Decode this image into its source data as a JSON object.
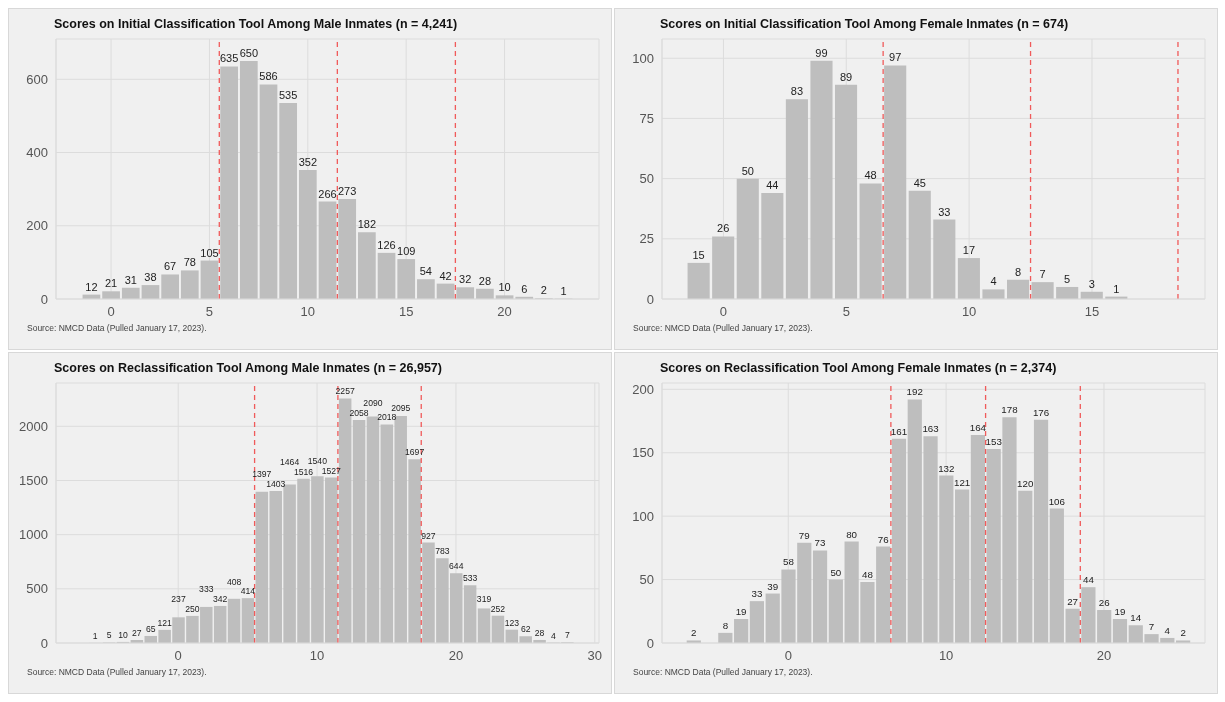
{
  "chart_data": [
    {
      "type": "histogram",
      "title": "Scores on Initial Classification Tool Among Male Inmates (n = 4,241)",
      "bins": [
        -1.5,
        -0.5,
        0.5,
        1.5,
        2.5,
        3.5,
        4.5,
        5.5,
        6.5,
        7.5,
        8.5,
        9.5,
        10.5,
        11.5,
        12.5,
        13.5,
        14.5,
        15.5,
        16.5,
        17.5,
        18.5,
        19.5,
        20.5,
        21.5,
        22.5,
        23.5
      ],
      "values": [
        12,
        21,
        31,
        38,
        67,
        78,
        105,
        635,
        650,
        586,
        535,
        352,
        266,
        273,
        182,
        126,
        109,
        54,
        42,
        32,
        28,
        10,
        6,
        2,
        1
      ],
      "color": "#bebebe",
      "xlim": [
        -2.8,
        24.8
      ],
      "ylim": [
        0,
        710
      ],
      "xticks": [
        0,
        5,
        10,
        15,
        20
      ],
      "yticks": [
        0,
        200,
        400,
        600
      ],
      "grid": true,
      "data_labels": true,
      "ref_lines": [
        {
          "axis": "x",
          "value": 5.5,
          "color": "#f05a5a",
          "line_style": "dashed"
        },
        {
          "axis": "x",
          "value": 11.5,
          "color": "#f05a5a",
          "line_style": "dashed"
        },
        {
          "axis": "x",
          "value": 17.5,
          "color": "#f05a5a",
          "line_style": "dashed"
        }
      ],
      "annotations": [
        "Source: NMCD Data (Pulled January 17, 2023)."
      ]
    },
    {
      "type": "histogram",
      "title": "Scores on Initial Classification Tool Among Female Inmates (n = 674)",
      "bins": [
        -1.5,
        -0.5,
        0.5,
        1.5,
        2.5,
        3.5,
        4.5,
        5.5,
        6.5,
        7.5,
        8.5,
        9.5,
        10.5,
        11.5,
        12.5,
        13.5,
        14.5,
        15.5,
        16.5
      ],
      "values": [
        15,
        26,
        50,
        44,
        83,
        99,
        89,
        48,
        97,
        45,
        33,
        17,
        4,
        8,
        7,
        5,
        3,
        1
      ],
      "color": "#bebebe",
      "xlim": [
        -2.5,
        19.6
      ],
      "ylim": [
        0,
        108
      ],
      "xticks": [
        0,
        5,
        10,
        15
      ],
      "yticks": [
        0,
        25,
        50,
        75,
        100
      ],
      "grid": true,
      "data_labels": true,
      "ref_lines": [
        {
          "axis": "x",
          "value": 6.5,
          "color": "#f05a5a",
          "line_style": "dashed"
        },
        {
          "axis": "x",
          "value": 12.5,
          "color": "#f05a5a",
          "line_style": "dashed"
        },
        {
          "axis": "x",
          "value": 18.5,
          "color": "#f05a5a",
          "line_style": "dashed"
        }
      ],
      "annotations": [
        "Source: NMCD Data (Pulled January 17, 2023)."
      ]
    },
    {
      "type": "histogram",
      "title": "Scores on Reclassification Tool Among Male Inmates (n = 26,957)",
      "bins": [
        -6.5,
        -5.5,
        -4.5,
        -3.5,
        -2.5,
        -1.5,
        -0.5,
        0.5,
        1.5,
        2.5,
        3.5,
        4.5,
        5.5,
        6.5,
        7.5,
        8.5,
        9.5,
        10.5,
        11.5,
        12.5,
        13.5,
        14.5,
        15.5,
        16.5,
        17.5,
        18.5,
        19.5,
        20.5,
        21.5,
        22.5,
        23.5,
        24.5,
        25.5,
        26.5,
        27.5,
        28.5
      ],
      "values": [
        1,
        5,
        10,
        27,
        65,
        121,
        237,
        250,
        333,
        342,
        408,
        414,
        1397,
        1403,
        1464,
        1516,
        1540,
        1527,
        2257,
        2058,
        2090,
        2018,
        2095,
        1697,
        927,
        783,
        644,
        533,
        319,
        252,
        123,
        62,
        28,
        4,
        7
      ],
      "color": "#bebebe",
      "xlim": [
        -8.8,
        30.3
      ],
      "ylim": [
        0,
        2400
      ],
      "xticks": [
        0,
        10,
        20,
        30
      ],
      "yticks": [
        0,
        500,
        1000,
        1500,
        2000
      ],
      "grid": true,
      "data_labels": true,
      "ref_lines": [
        {
          "axis": "x",
          "value": 5.5,
          "color": "#f05a5a",
          "line_style": "dashed"
        },
        {
          "axis": "x",
          "value": 11.5,
          "color": "#f05a5a",
          "line_style": "dashed"
        },
        {
          "axis": "x",
          "value": 17.5,
          "color": "#f05a5a",
          "line_style": "dashed"
        }
      ],
      "annotations": [
        "Source: NMCD Data (Pulled January 17, 2023)."
      ]
    },
    {
      "type": "histogram",
      "title": "Scores on Reclassification Tool Among Female Inmates (n = 2,374)",
      "bins": [
        -6.5,
        -5.5,
        -4.5,
        -3.5,
        -2.5,
        -1.5,
        -0.5,
        0.5,
        1.5,
        2.5,
        3.5,
        4.5,
        5.5,
        6.5,
        7.5,
        8.5,
        9.5,
        10.5,
        11.5,
        12.5,
        13.5,
        14.5,
        15.5,
        16.5,
        17.5,
        18.5,
        19.5,
        20.5,
        21.5,
        22.5,
        23.5,
        24.5,
        25.5
      ],
      "values": [
        2,
        null,
        8,
        19,
        33,
        39,
        58,
        79,
        73,
        50,
        80,
        48,
        76,
        161,
        192,
        163,
        132,
        121,
        164,
        153,
        178,
        120,
        176,
        106,
        27,
        44,
        26,
        19,
        14,
        7,
        4,
        2
      ],
      "color": "#bebebe",
      "xlim": [
        -8,
        26.4
      ],
      "ylim": [
        0,
        205
      ],
      "xticks": [
        0,
        10,
        20
      ],
      "yticks": [
        0,
        50,
        100,
        150,
        200
      ],
      "grid": true,
      "data_labels": true,
      "ref_lines": [
        {
          "axis": "x",
          "value": 6.5,
          "color": "#f05a5a",
          "line_style": "dashed"
        },
        {
          "axis": "x",
          "value": 12.5,
          "color": "#f05a5a",
          "line_style": "dashed"
        },
        {
          "axis": "x",
          "value": 18.5,
          "color": "#f05a5a",
          "line_style": "dashed"
        }
      ],
      "annotations": [
        "Source: NMCD Data (Pulled January 17, 2023)."
      ]
    }
  ]
}
